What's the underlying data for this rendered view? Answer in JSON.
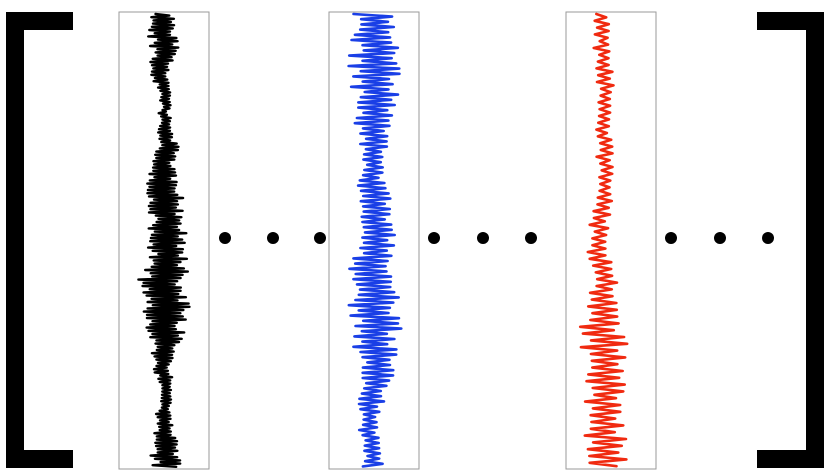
{
  "figure": {
    "description_free": true,
    "panels": [
      {
        "id": "panel-1",
        "trace_color": "#000000"
      },
      {
        "id": "panel-2",
        "trace_color": "#1a3fe6"
      },
      {
        "id": "panel-3",
        "trace_color": "#f02a10"
      }
    ],
    "ellipsis_groups": [
      {
        "dots": 3
      },
      {
        "dots": 3
      },
      {
        "dots": 3
      }
    ],
    "brackets": {
      "color": "#000000"
    }
  }
}
